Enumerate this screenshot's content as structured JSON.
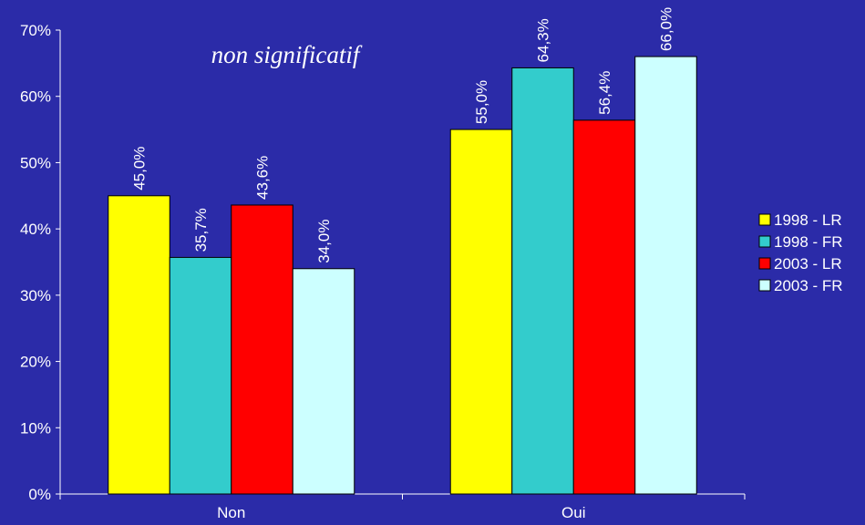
{
  "chart_data": {
    "type": "bar",
    "categories": [
      "Non",
      "Oui"
    ],
    "series": [
      {
        "name": "1998 - LR",
        "values": [
          45.0,
          55.0
        ],
        "labels": [
          "45,0%",
          "55,0%"
        ],
        "color": "#FFFF00"
      },
      {
        "name": "1998 - FR",
        "values": [
          35.7,
          64.3
        ],
        "labels": [
          "35,7%",
          "64,3%"
        ],
        "color": "#33CCCC"
      },
      {
        "name": "2003 - LR",
        "values": [
          43.6,
          56.4
        ],
        "labels": [
          "43,6%",
          "56,4%"
        ],
        "color": "#FF0000"
      },
      {
        "name": "2003 - FR",
        "values": [
          34.0,
          66.0
        ],
        "labels": [
          "34,0%",
          "66,0%"
        ],
        "color": "#CCFFFF"
      }
    ],
    "ylim": [
      0,
      70
    ],
    "yticks": [
      {
        "value": 0,
        "label": "0%"
      },
      {
        "value": 10,
        "label": "10%"
      },
      {
        "value": 20,
        "label": "20%"
      },
      {
        "value": 30,
        "label": "30%"
      },
      {
        "value": 40,
        "label": "40%"
      },
      {
        "value": 50,
        "label": "50%"
      },
      {
        "value": 60,
        "label": "60%"
      },
      {
        "value": 70,
        "label": "70%"
      }
    ],
    "annotation": "non significatif",
    "legend_position": "right",
    "grid": false,
    "background": "#2B2BA8"
  }
}
